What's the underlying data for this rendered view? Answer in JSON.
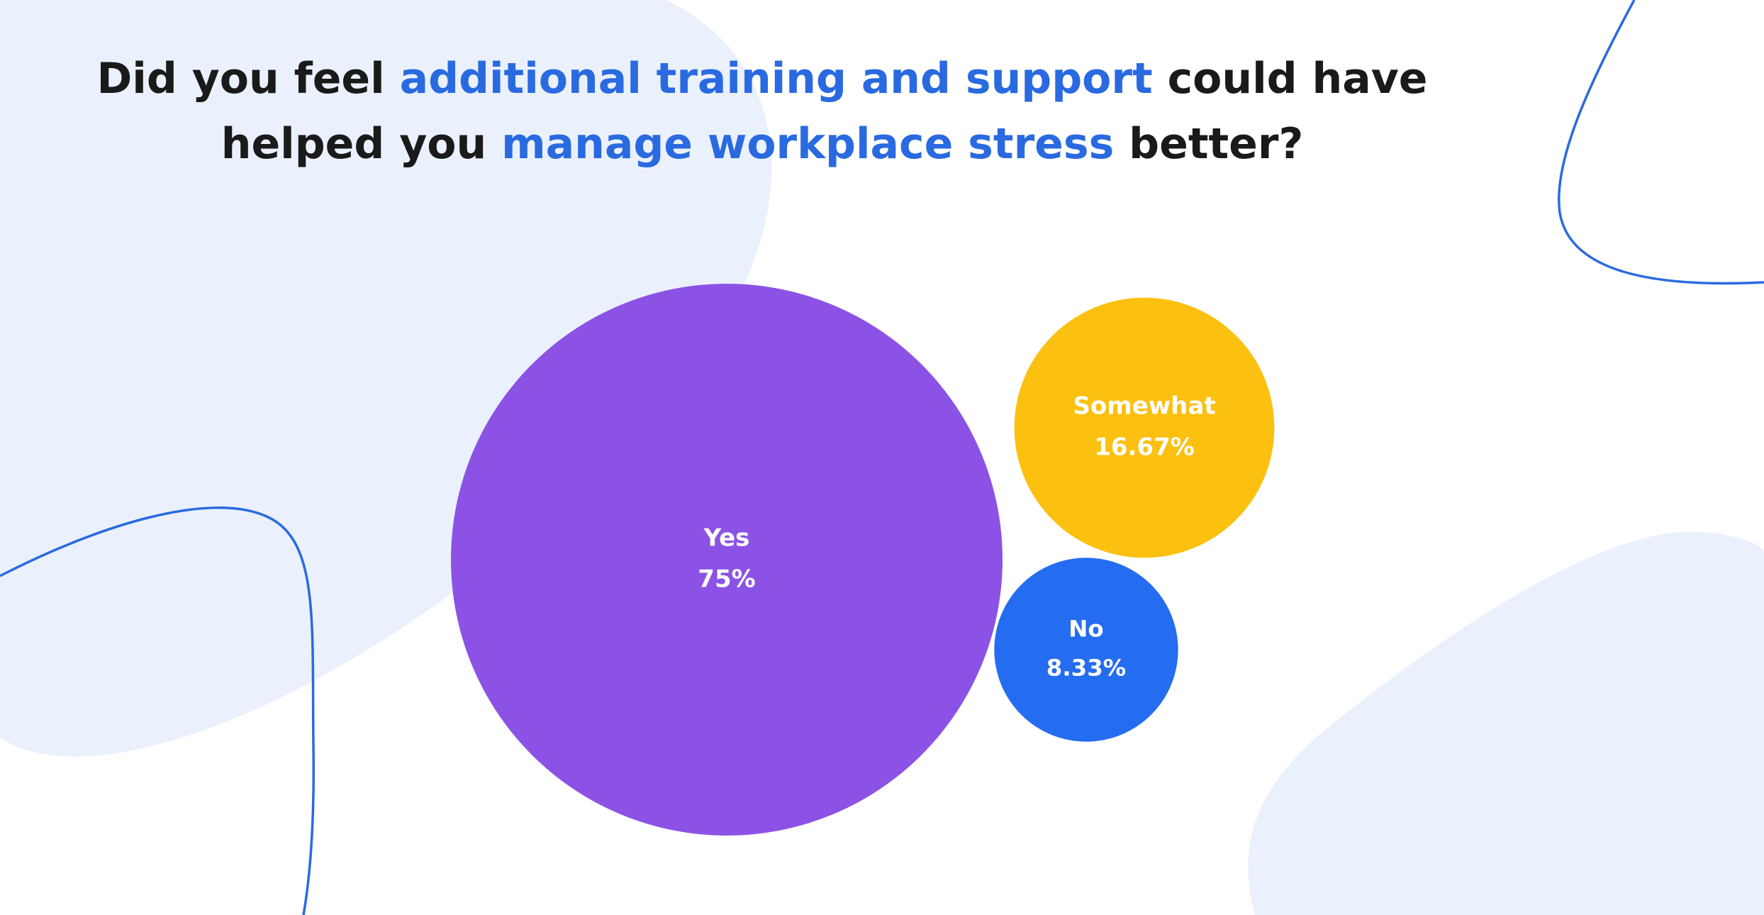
{
  "chart_data": {
    "type": "bubble",
    "title_lines": [
      [
        {
          "text": "Did you feel",
          "highlight": false
        },
        {
          "text": "additional training and support",
          "highlight": true
        },
        {
          "text": "could have",
          "highlight": false
        }
      ],
      [
        {
          "text": "helped you",
          "highlight": false
        },
        {
          "text": "manage workplace stress",
          "highlight": true
        },
        {
          "text": "better?",
          "highlight": false
        }
      ]
    ],
    "title_color": "#1a1a1a",
    "highlight_color": "#2a6ae0",
    "categories": [
      "Yes",
      "Somewhat",
      "No"
    ],
    "values": [
      75,
      16.67,
      8.33
    ],
    "value_labels": [
      "75%",
      "16.67%",
      "8.33%"
    ],
    "colors": [
      "#8c52e5",
      "#fcc010",
      "#246cf0"
    ]
  }
}
